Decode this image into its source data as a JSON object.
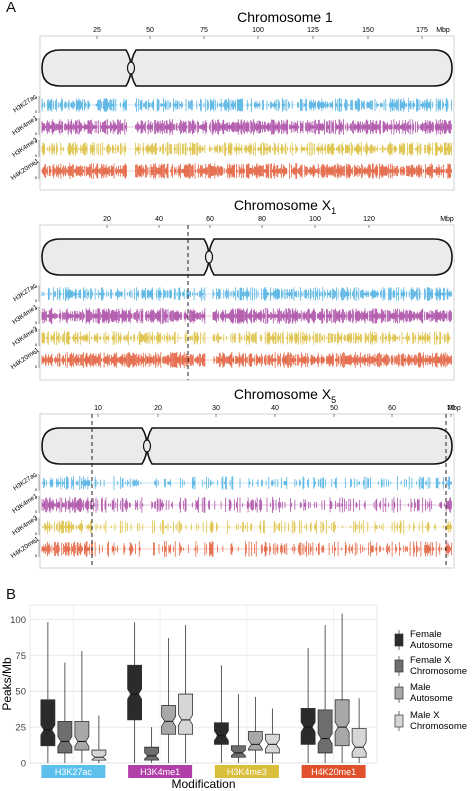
{
  "panel_a": {
    "letter": "A",
    "chromosomes": [
      {
        "title": "Chromosome 1",
        "subscript": "",
        "ticks": [
          "25",
          "50",
          "75",
          "100",
          "125",
          "150",
          "175"
        ],
        "unit": "Mbp",
        "tracks": [
          "H3K27ac",
          "H3K4me1",
          "H3K4me3",
          "H4K20me1"
        ]
      },
      {
        "title": "Chromosome X",
        "subscript": "1",
        "ticks": [
          "20",
          "40",
          "60",
          "80",
          "100",
          "120"
        ],
        "unit": "Mbp",
        "tracks": [
          "H3K27ac",
          "H3K4me1",
          "H3K4me3",
          "H4K20me1"
        ]
      },
      {
        "title": "Chromosome X",
        "subscript": "5",
        "ticks": [
          "10",
          "20",
          "30",
          "40",
          "50",
          "60",
          "70"
        ],
        "unit": "Mbp",
        "tracks": [
          "H3K27ac",
          "H3K4me1",
          "H3K4me3",
          "H4K20me1"
        ]
      }
    ],
    "track_colors": [
      "#3fa9e0",
      "#a33b9e",
      "#d9b92e",
      "#e0502a"
    ]
  },
  "panel_b": {
    "letter": "B",
    "chart_data": {
      "type": "box",
      "title": "",
      "xlabel": "Modification",
      "ylabel": "Peaks/Mb",
      "ylim": [
        0,
        110
      ],
      "yticks": [
        "0",
        "25",
        "50",
        "75",
        "100"
      ],
      "categories": [
        "H3K27ac",
        "H3K4me1",
        "H3K4me3",
        "H4K20me1"
      ],
      "category_colors": [
        "#5bc0eb",
        "#b03fa7",
        "#d8be39",
        "#e0502a"
      ],
      "series": [
        {
          "name": "Female Autosome",
          "color": "#2b2b2b",
          "boxes": [
            [
              0,
              12,
              23,
              44,
              98
            ],
            [
              0,
              30,
              48,
              68,
              98
            ],
            [
              0,
              13,
              19,
              28,
              68
            ],
            [
              0,
              13,
              25,
              38,
              80
            ]
          ]
        },
        {
          "name": "Female X Chromosome",
          "color": "#6e6e6e",
          "boxes": [
            [
              0,
              7,
              15,
              29,
              70
            ],
            [
              0,
              2,
              5,
              11,
              25
            ],
            [
              0,
              4,
              7,
              12,
              48
            ],
            [
              0,
              7,
              17,
              37,
              96
            ]
          ]
        },
        {
          "name": "Male Autosome",
          "color": "#a8a8a8",
          "boxes": [
            [
              0,
              9,
              15,
              29,
              78
            ],
            [
              0,
              20,
              29,
              40,
              87
            ],
            [
              0,
              9,
              13,
              22,
              46
            ],
            [
              0,
              12,
              25,
              44,
              104
            ]
          ]
        },
        {
          "name": "Male X Chromosome",
          "color": "#d6d6d6",
          "boxes": [
            [
              0,
              2,
              4,
              9,
              33
            ],
            [
              0,
              20,
              30,
              48,
              96
            ],
            [
              0,
              7,
              13,
              20,
              38
            ],
            [
              0,
              4,
              11,
              24,
              45
            ]
          ]
        }
      ],
      "legend": [
        "Female\nAutosome",
        "Female X\nChromosome",
        "Male\nAutosome",
        "Male X\nChromosome"
      ],
      "grid": true,
      "legend_position": "right"
    }
  }
}
